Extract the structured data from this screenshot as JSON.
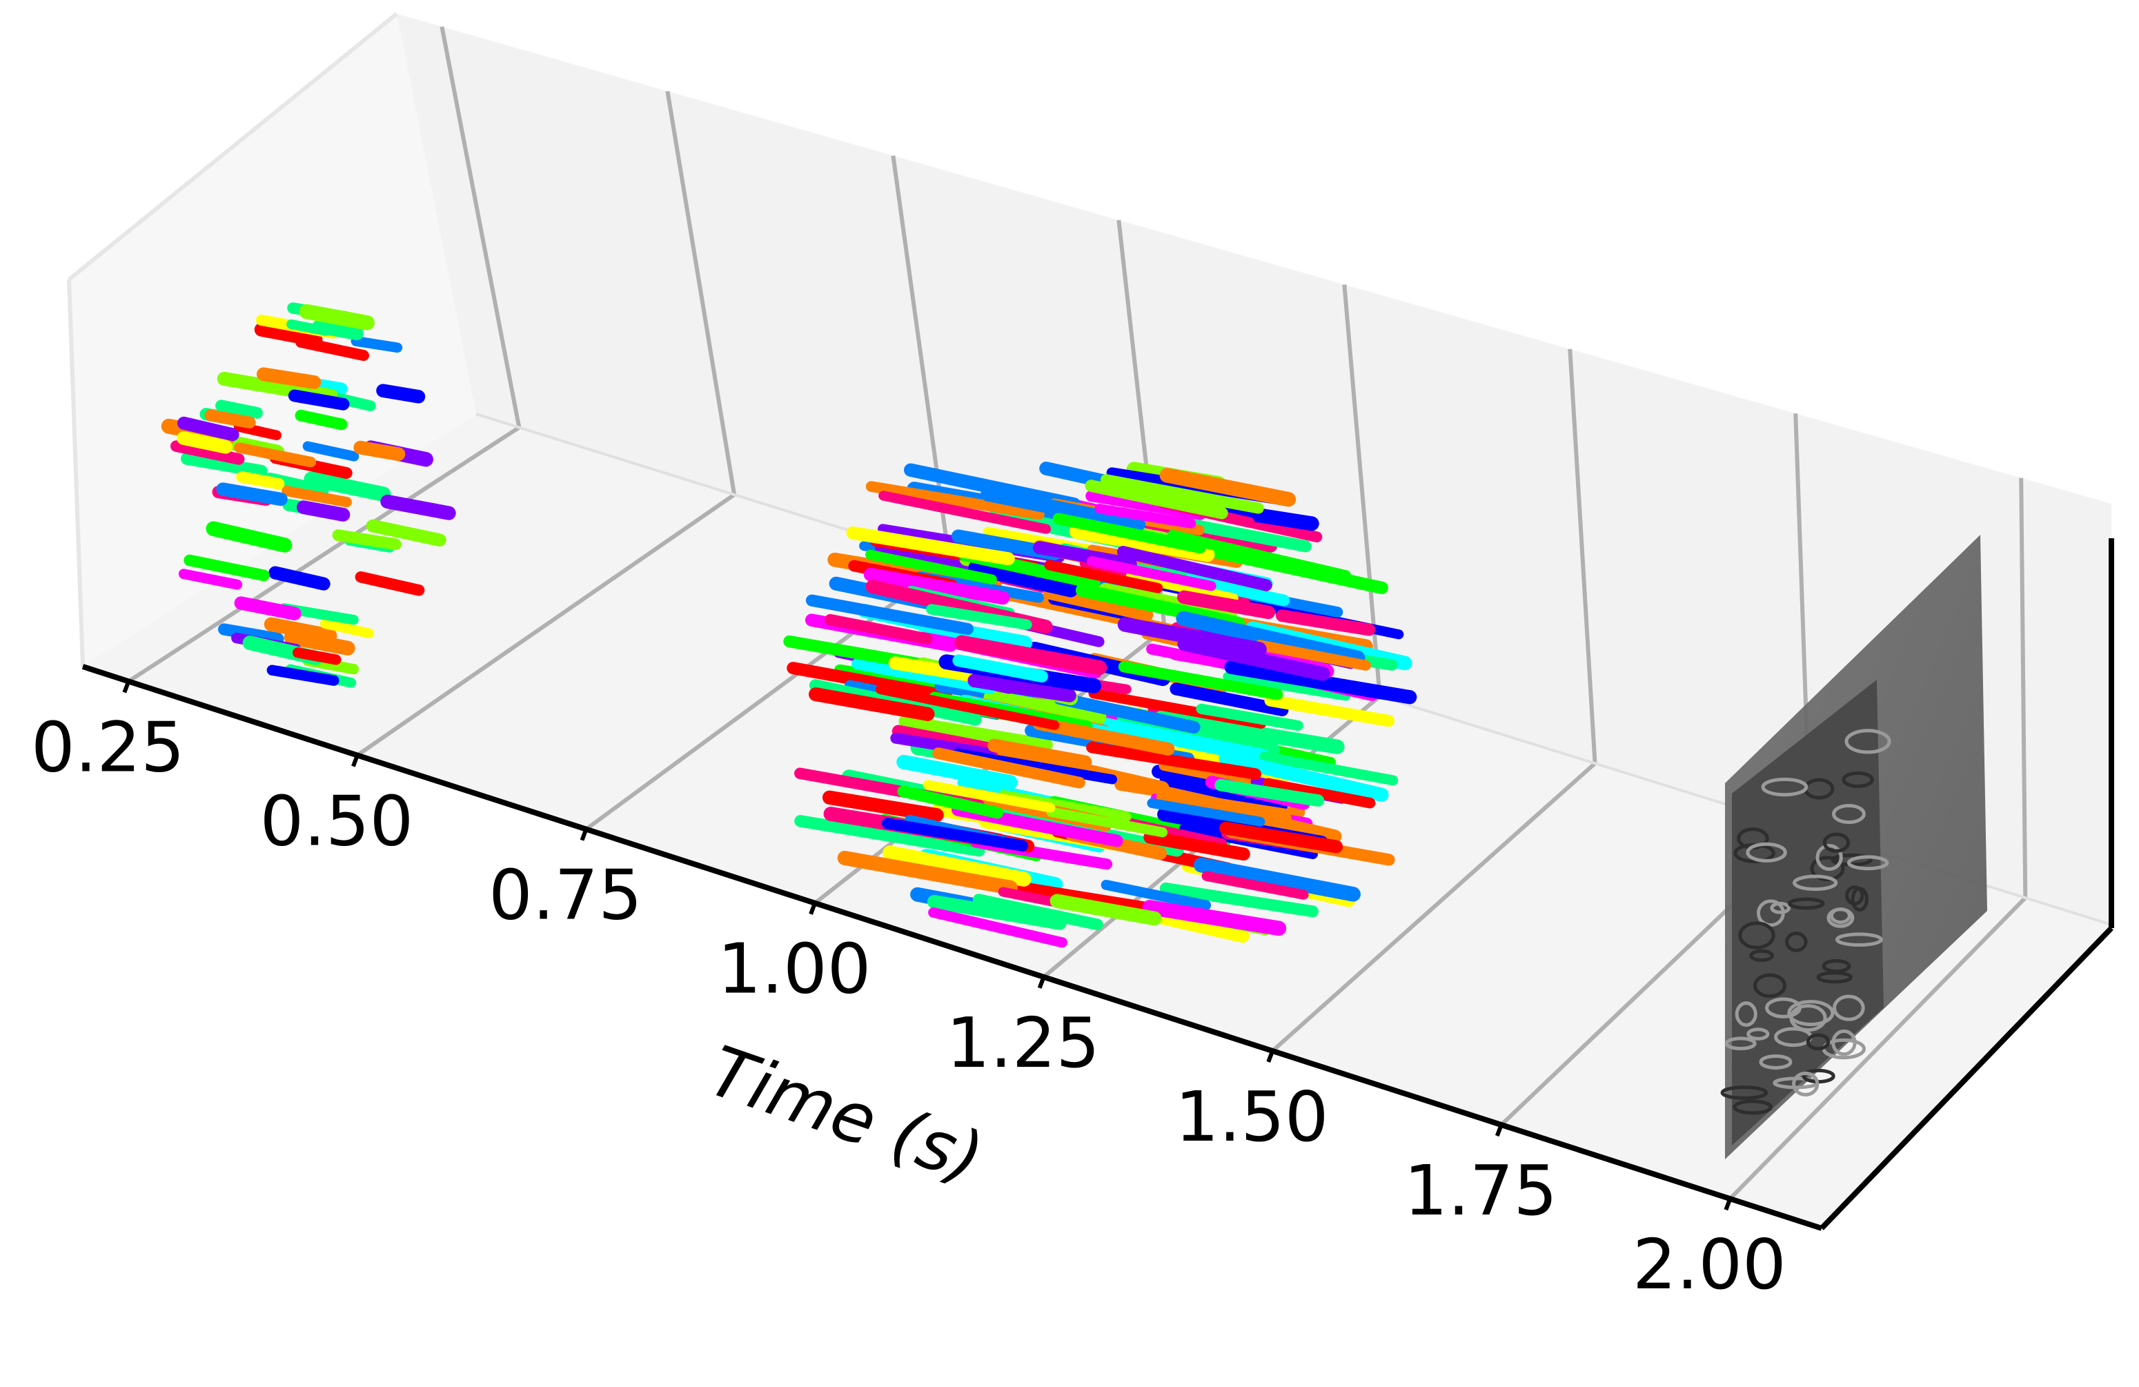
{
  "chart_data": {
    "type": "scatter",
    "projection": "3d",
    "xlabel": "Time (s)",
    "xlim": [
      0.2,
      2.1
    ],
    "x_ticks": [
      "0.25",
      "0.50",
      "0.75",
      "1.00",
      "1.25",
      "1.50",
      "1.75",
      "2.00"
    ],
    "grid": true,
    "series": [
      {
        "x_start": 0.22,
        "x_end": 0.45
      },
      {
        "x_start": 1.05,
        "x_end": 1.45
      }
    ],
    "image_slice": {
      "x": 2.0,
      "content": "grayscale event frame"
    },
    "colors": {
      "axis": "#000000",
      "grid": "#b0b0b0",
      "pane_floor": "#f4f4f4",
      "pane_back": "#f2f2f2",
      "pane_left": "#f7f7f7",
      "palette": [
        "#ff0000",
        "#ff8000",
        "#ffff00",
        "#80ff00",
        "#00ff00",
        "#00ff80",
        "#00ffff",
        "#0080ff",
        "#0000ff",
        "#8000ff",
        "#ff00ff",
        "#ff0080"
      ]
    }
  }
}
